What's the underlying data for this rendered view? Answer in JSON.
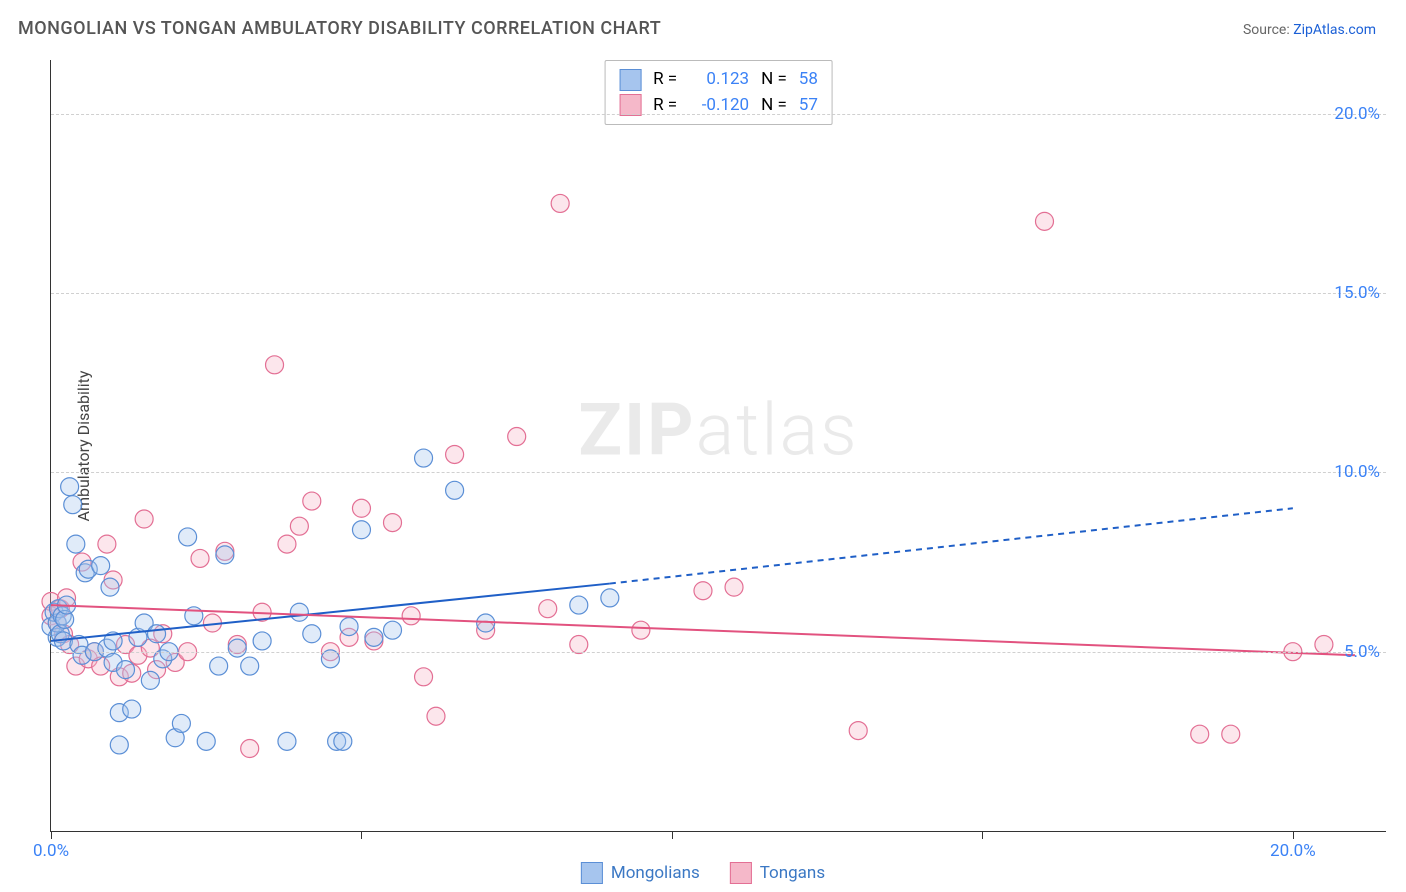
{
  "title": "MONGOLIAN VS TONGAN AMBULATORY DISABILITY CORRELATION CHART",
  "source_label": "Source: ",
  "source_name": "ZipAtlas.com",
  "ylabel": "Ambulatory Disability",
  "watermark_bold": "ZIP",
  "watermark_light": "atlas",
  "chart": {
    "type": "scatter",
    "xlim": [
      0,
      21.5
    ],
    "ylim": [
      0,
      21.5
    ],
    "y_ticks": [
      5.0,
      10.0,
      15.0,
      20.0
    ],
    "y_tick_labels": [
      "5.0%",
      "10.0%",
      "15.0%",
      "20.0%"
    ],
    "x_ticks": [
      0,
      5,
      10,
      15,
      20
    ],
    "x_tick_labels": {
      "0": "0.0%",
      "20": "20.0%"
    },
    "background_color": "#ffffff",
    "grid_color": "#d0d0d0",
    "axis_color": "#333333",
    "label_color": "#3b82f6",
    "marker_radius": 9,
    "marker_fill_opacity": 0.35,
    "marker_stroke_width": 1.2,
    "series": {
      "mongolians": {
        "label": "Mongolians",
        "R": "0.123",
        "N": "58",
        "fill": "#a6c5ee",
        "stroke": "#5b8fd6",
        "trend": {
          "x1": 0,
          "y1": 5.3,
          "x2": 9.0,
          "y2": 6.9,
          "dash_x2": 20.0,
          "dash_y2": 9.0,
          "color": "#1f5fc7",
          "width": 2
        },
        "points": [
          [
            0.0,
            5.7
          ],
          [
            0.05,
            6.1
          ],
          [
            0.1,
            5.4
          ],
          [
            0.1,
            5.8
          ],
          [
            0.12,
            6.2
          ],
          [
            0.15,
            5.5
          ],
          [
            0.18,
            6.0
          ],
          [
            0.2,
            5.3
          ],
          [
            0.22,
            5.9
          ],
          [
            0.25,
            6.3
          ],
          [
            0.3,
            9.6
          ],
          [
            0.35,
            9.1
          ],
          [
            0.4,
            8.0
          ],
          [
            0.45,
            5.2
          ],
          [
            0.5,
            4.9
          ],
          [
            0.55,
            7.2
          ],
          [
            0.6,
            7.3
          ],
          [
            0.7,
            5.0
          ],
          [
            0.8,
            7.4
          ],
          [
            0.9,
            5.1
          ],
          [
            0.95,
            6.8
          ],
          [
            1.0,
            5.3
          ],
          [
            1.0,
            4.7
          ],
          [
            1.1,
            3.3
          ],
          [
            1.1,
            2.4
          ],
          [
            1.2,
            4.5
          ],
          [
            1.3,
            3.4
          ],
          [
            1.4,
            5.4
          ],
          [
            1.5,
            5.8
          ],
          [
            1.6,
            4.2
          ],
          [
            1.7,
            5.5
          ],
          [
            1.8,
            4.8
          ],
          [
            1.9,
            5.0
          ],
          [
            2.0,
            2.6
          ],
          [
            2.1,
            3.0
          ],
          [
            2.2,
            8.2
          ],
          [
            2.3,
            6.0
          ],
          [
            2.5,
            2.5
          ],
          [
            2.7,
            4.6
          ],
          [
            2.8,
            7.7
          ],
          [
            3.0,
            5.1
          ],
          [
            3.2,
            4.6
          ],
          [
            3.4,
            5.3
          ],
          [
            3.8,
            2.5
          ],
          [
            4.0,
            6.1
          ],
          [
            4.2,
            5.5
          ],
          [
            4.5,
            4.8
          ],
          [
            4.6,
            2.5
          ],
          [
            4.7,
            2.5
          ],
          [
            4.8,
            5.7
          ],
          [
            5.0,
            8.4
          ],
          [
            5.2,
            5.4
          ],
          [
            5.5,
            5.6
          ],
          [
            6.0,
            10.4
          ],
          [
            6.5,
            9.5
          ],
          [
            7.0,
            5.8
          ],
          [
            8.5,
            6.3
          ],
          [
            9.0,
            6.5
          ]
        ]
      },
      "tongans": {
        "label": "Tongans",
        "R": "-0.120",
        "N": "57",
        "fill": "#f5b8c9",
        "stroke": "#e36f94",
        "trend": {
          "x1": 0,
          "y1": 6.3,
          "x2": 21.0,
          "y2": 4.9,
          "color": "#e2527f",
          "width": 2
        },
        "points": [
          [
            0.0,
            6.4
          ],
          [
            0.0,
            6.0
          ],
          [
            0.1,
            5.8
          ],
          [
            0.15,
            6.2
          ],
          [
            0.2,
            5.5
          ],
          [
            0.25,
            6.5
          ],
          [
            0.3,
            5.2
          ],
          [
            0.4,
            4.6
          ],
          [
            0.5,
            7.5
          ],
          [
            0.6,
            4.8
          ],
          [
            0.7,
            5.0
          ],
          [
            0.8,
            4.6
          ],
          [
            0.9,
            8.0
          ],
          [
            1.0,
            7.0
          ],
          [
            1.1,
            4.3
          ],
          [
            1.2,
            5.2
          ],
          [
            1.3,
            4.4
          ],
          [
            1.4,
            4.9
          ],
          [
            1.5,
            8.7
          ],
          [
            1.6,
            5.1
          ],
          [
            1.7,
            4.5
          ],
          [
            1.8,
            5.5
          ],
          [
            2.0,
            4.7
          ],
          [
            2.2,
            5.0
          ],
          [
            2.4,
            7.6
          ],
          [
            2.6,
            5.8
          ],
          [
            2.8,
            7.8
          ],
          [
            3.0,
            5.2
          ],
          [
            3.2,
            2.3
          ],
          [
            3.4,
            6.1
          ],
          [
            3.6,
            13.0
          ],
          [
            3.8,
            8.0
          ],
          [
            4.0,
            8.5
          ],
          [
            4.2,
            9.2
          ],
          [
            4.5,
            5.0
          ],
          [
            4.8,
            5.4
          ],
          [
            5.0,
            9.0
          ],
          [
            5.2,
            5.3
          ],
          [
            5.5,
            8.6
          ],
          [
            5.8,
            6.0
          ],
          [
            6.0,
            4.3
          ],
          [
            6.2,
            3.2
          ],
          [
            6.5,
            10.5
          ],
          [
            7.0,
            5.6
          ],
          [
            7.5,
            11.0
          ],
          [
            8.0,
            6.2
          ],
          [
            8.2,
            17.5
          ],
          [
            8.5,
            5.2
          ],
          [
            9.5,
            5.6
          ],
          [
            10.5,
            6.7
          ],
          [
            11.0,
            6.8
          ],
          [
            13.0,
            2.8
          ],
          [
            16.0,
            17.0
          ],
          [
            18.5,
            2.7
          ],
          [
            19.0,
            2.7
          ],
          [
            20.0,
            5.0
          ],
          [
            20.5,
            5.2
          ]
        ]
      }
    }
  },
  "rbox": {
    "R_label": "R =",
    "N_label": "N ="
  }
}
